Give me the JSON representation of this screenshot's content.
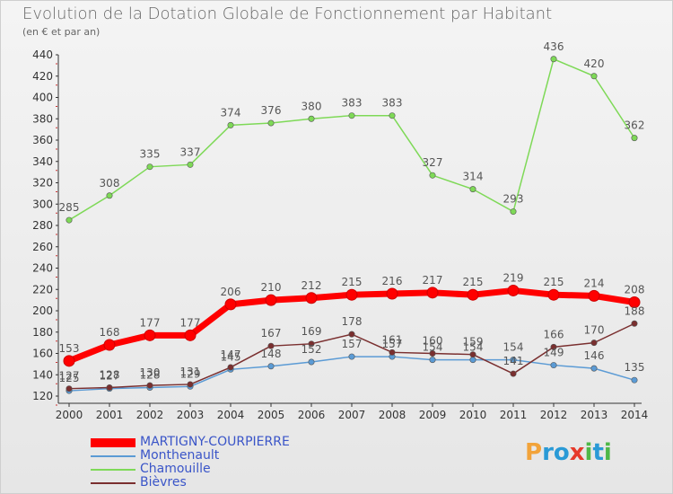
{
  "title": "Evolution de la Dotation Globale de Fonctionnement par Habitant",
  "subtitle": "(en € et par an)",
  "brand": {
    "letters": [
      "P",
      "r",
      "o",
      "x",
      "i",
      "t",
      "i"
    ],
    "letter_colors": [
      "#f2a33a",
      "#2a9ad6",
      "#2a9ad6",
      "#e63a2b",
      "#4fb848",
      "#2a9ad6",
      "#4fb848"
    ]
  },
  "chart_data": {
    "type": "line",
    "x": [
      "2000",
      "2001",
      "2002",
      "2003",
      "2004",
      "2005",
      "2006",
      "2007",
      "2008",
      "2009",
      "2010",
      "2011",
      "2012",
      "2013",
      "2014"
    ],
    "ylim": [
      120,
      440
    ],
    "yticks": [
      "120",
      "140",
      "160",
      "180",
      "200",
      "220",
      "240",
      "260",
      "280",
      "300",
      "320",
      "340",
      "360",
      "380",
      "400",
      "420",
      "440"
    ],
    "legend_position": "bottom-left",
    "grid": false,
    "series": [
      {
        "name": "MARTIGNY-COURPIERRE",
        "color": "#ff0000",
        "width": 7,
        "label_color": "#555555",
        "values": [
          153,
          168,
          177,
          177,
          206,
          210,
          212,
          215,
          216,
          217,
          215,
          219,
          215,
          214,
          208
        ],
        "labels": [
          "153",
          "168",
          "177",
          "177",
          "206",
          "210",
          "212",
          "215",
          "216",
          "217",
          "215",
          "219",
          "215",
          "214",
          "208"
        ]
      },
      {
        "name": "Monthenault",
        "color": "#5b9bd5",
        "width": 1.5,
        "label_color": "#555555",
        "values": [
          125,
          127,
          128,
          129,
          145,
          148,
          152,
          157,
          157,
          154,
          154,
          154,
          149,
          146,
          135
        ],
        "labels": [
          "125",
          "127",
          "128",
          "129",
          "145",
          "148",
          "152",
          "157",
          "157",
          "154",
          "154",
          "154",
          "149",
          "146",
          "135"
        ]
      },
      {
        "name": "Chamouille",
        "color": "#7ed957",
        "width": 1.5,
        "label_color": "#555555",
        "values": [
          285,
          308,
          335,
          337,
          374,
          376,
          380,
          383,
          383,
          327,
          314,
          293,
          436,
          420,
          362
        ],
        "labels": [
          "285",
          "308",
          "335",
          "337",
          "374",
          "376",
          "380",
          "383",
          "383",
          "327",
          "314",
          "293",
          "436",
          "420",
          "362"
        ]
      },
      {
        "name": "Bièvres",
        "color": "#7a2f2f",
        "width": 1.5,
        "label_color": "#555555",
        "values": [
          127,
          128,
          130,
          131,
          147,
          167,
          169,
          178,
          161,
          160,
          159,
          141,
          166,
          170,
          188
        ],
        "labels": [
          "127",
          "128",
          "130",
          "131",
          "147",
          "167",
          "169",
          "178",
          "161",
          "160",
          "159",
          "141",
          "166",
          "170",
          "188"
        ]
      }
    ]
  }
}
